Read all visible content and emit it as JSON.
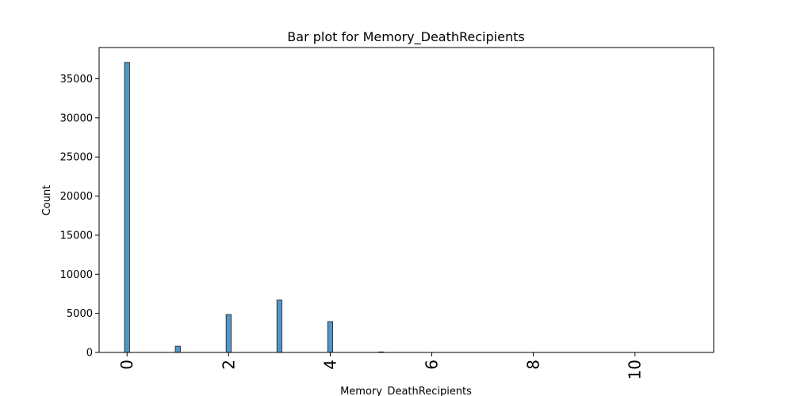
{
  "chart_data": {
    "type": "bar",
    "title": "Bar plot for Memory_DeathRecipients",
    "xlabel": "Memory_DeathRecipients",
    "ylabel": "Count",
    "x": [
      0,
      1,
      2,
      3,
      4,
      5,
      6,
      7,
      8,
      9,
      10,
      11
    ],
    "values": [
      37100,
      800,
      4850,
      6700,
      3950,
      70,
      0,
      0,
      0,
      0,
      0,
      0
    ],
    "xlim": [
      -0.55,
      11.55
    ],
    "ylim": [
      0,
      39000
    ],
    "xticks": [
      0,
      2,
      4,
      6,
      8,
      10
    ],
    "yticks": [
      0,
      5000,
      10000,
      15000,
      20000,
      25000,
      30000,
      35000
    ],
    "bar_color": "#5197c5",
    "grid": false,
    "legend": "none"
  }
}
